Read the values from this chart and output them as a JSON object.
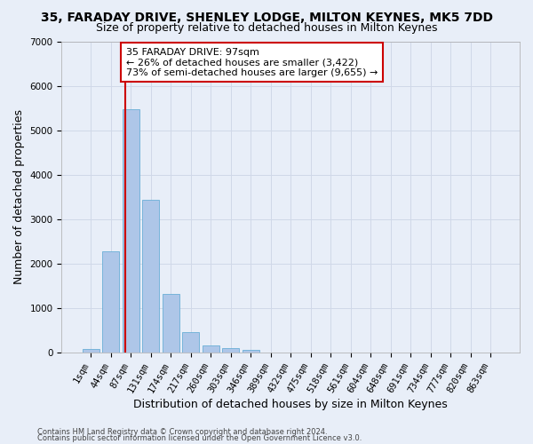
{
  "title_line1": "35, FARADAY DRIVE, SHENLEY LODGE, MILTON KEYNES, MK5 7DD",
  "title_line2": "Size of property relative to detached houses in Milton Keynes",
  "xlabel": "Distribution of detached houses by size in Milton Keynes",
  "ylabel": "Number of detached properties",
  "footer1": "Contains HM Land Registry data © Crown copyright and database right 2024.",
  "footer2": "Contains public sector information licensed under the Open Government Licence v3.0.",
  "bar_labels": [
    "1sqm",
    "44sqm",
    "87sqm",
    "131sqm",
    "174sqm",
    "217sqm",
    "260sqm",
    "303sqm",
    "346sqm",
    "389sqm",
    "432sqm",
    "475sqm",
    "518sqm",
    "561sqm",
    "604sqm",
    "648sqm",
    "691sqm",
    "734sqm",
    "777sqm",
    "820sqm",
    "863sqm"
  ],
  "bar_values": [
    80,
    2280,
    5480,
    3430,
    1320,
    460,
    160,
    90,
    55,
    0,
    0,
    0,
    0,
    0,
    0,
    0,
    0,
    0,
    0,
    0,
    0
  ],
  "bar_color": "#aec6e8",
  "bar_edgecolor": "#6aaed6",
  "vline_x": 1.7,
  "vline_color": "#cc0000",
  "ylim": [
    0,
    7000
  ],
  "yticks": [
    0,
    1000,
    2000,
    3000,
    4000,
    5000,
    6000,
    7000
  ],
  "annotation_text": "35 FARADAY DRIVE: 97sqm\n← 26% of detached houses are smaller (3,422)\n73% of semi-detached houses are larger (9,655) →",
  "annotation_box_color": "#ffffff",
  "annotation_box_edgecolor": "#cc0000",
  "grid_color": "#d0d8e8",
  "background_color": "#e8eef8",
  "title_fontsize": 10,
  "subtitle_fontsize": 9,
  "xlabel_fontsize": 9,
  "ylabel_fontsize": 9,
  "tick_fontsize": 7.5,
  "annotation_fontsize": 8,
  "footer_fontsize": 6
}
